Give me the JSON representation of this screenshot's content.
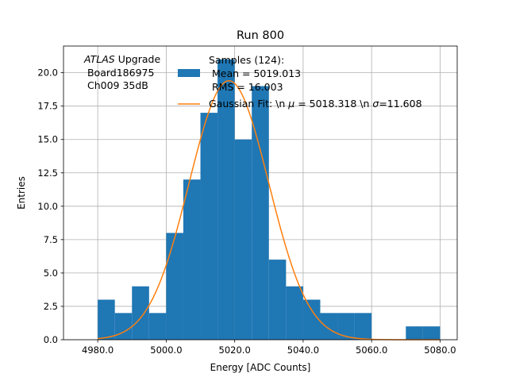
{
  "chart_data": {
    "type": "bar",
    "title": "Run 800",
    "xlabel": "Energy [ADC Counts]",
    "ylabel": "Entries",
    "xlim": [
      4970,
      5085
    ],
    "ylim": [
      0,
      22
    ],
    "grid": true,
    "x_ticks": [
      4980,
      5000,
      5020,
      5040,
      5060,
      5080
    ],
    "x_tick_labels": [
      "4980.0",
      "5000.0",
      "5020.0",
      "5040.0",
      "5060.0",
      "5080.0"
    ],
    "y_ticks": [
      0,
      2.5,
      5,
      7.5,
      10,
      12.5,
      15,
      17.5,
      20
    ],
    "y_tick_labels": [
      "0.0",
      "2.5",
      "5.0",
      "7.5",
      "10.0",
      "12.5",
      "15.0",
      "17.5",
      "20.0"
    ],
    "annotation": {
      "italic": "ATLAS",
      "rest": " Upgrade",
      "line2": " Board186975",
      "line3": " Ch009 35dB"
    },
    "legend": {
      "placement": "top-center",
      "hist_lines": [
        "Samples (124):",
        " Mean = 5019.013",
        " RMS = 16.003"
      ],
      "fit_prefix": "Gaussian Fit: \\n ",
      "fit_mu_symbol": "μ",
      "fit_mid": " = 5018.318 \\n ",
      "fit_sigma_symbol": "σ",
      "fit_suffix": "=11.608"
    },
    "series": [
      {
        "type": "histogram",
        "color": "#1f77b4",
        "bin_edges": [
          4980,
          4985,
          4990,
          4995,
          5000,
          5005,
          5010,
          5015,
          5020,
          5025,
          5030,
          5035,
          5040,
          5045,
          5050,
          5055,
          5060,
          5065,
          5070,
          5075,
          5080
        ],
        "counts": [
          3,
          2,
          4,
          2,
          8,
          12,
          17,
          21,
          15,
          19,
          6,
          4,
          3,
          2,
          2,
          2,
          0,
          0,
          1,
          1
        ]
      },
      {
        "type": "gaussian",
        "color": "#ff7f0e",
        "mu": 5018.318,
        "sigma": 11.608,
        "amplitude": 19.4,
        "x_range": [
          4980,
          5080
        ]
      }
    ]
  }
}
